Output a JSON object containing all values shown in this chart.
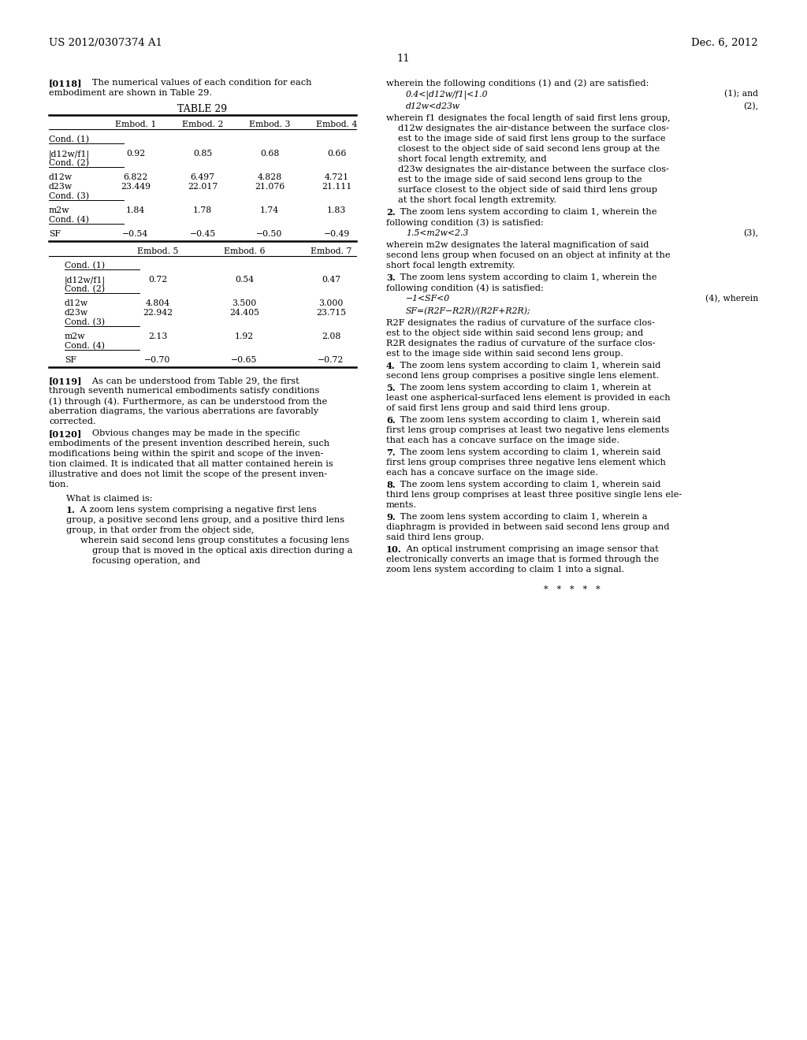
{
  "header_left": "US 2012/0307374 A1",
  "header_right": "Dec. 6, 2012",
  "page_number": "11",
  "background_color": "#ffffff",
  "text_color": "#000000",
  "table_title": "TABLE 29",
  "dots": "*   *   *   *   *"
}
